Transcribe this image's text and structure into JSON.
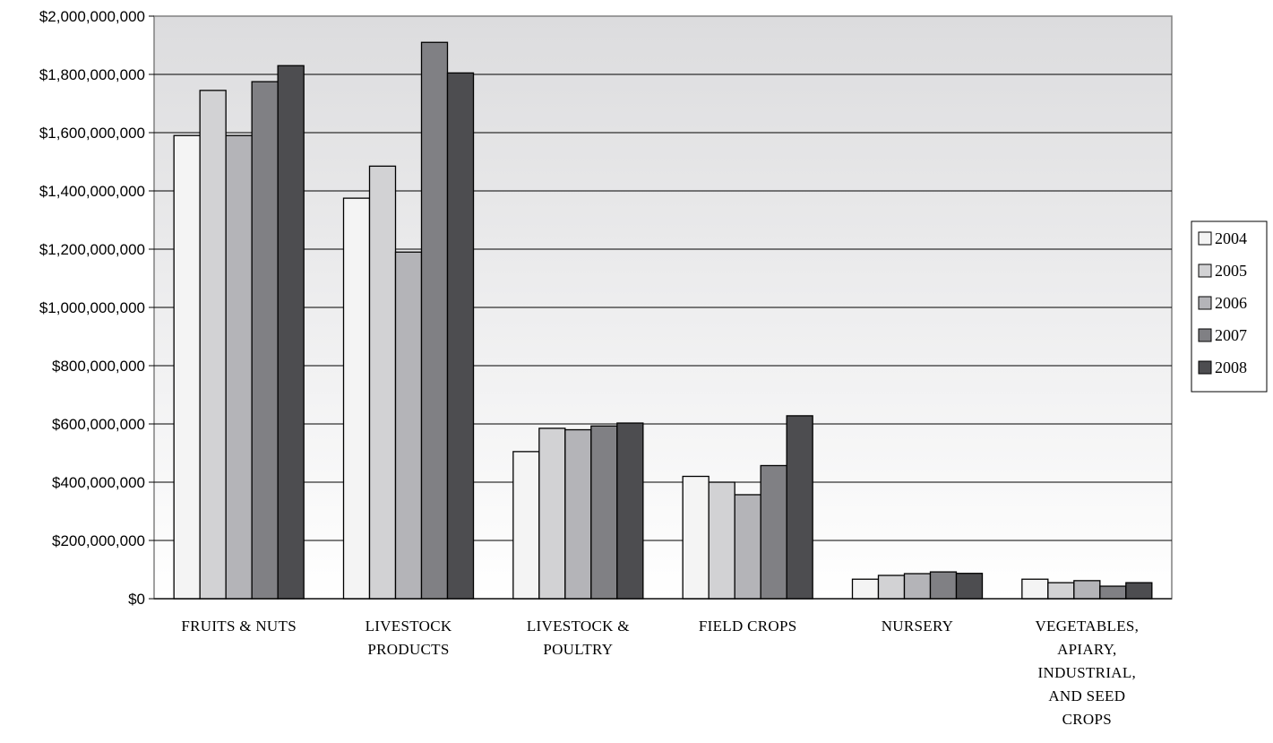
{
  "chart_data": {
    "type": "bar",
    "title": "",
    "xlabel": "",
    "ylabel": "",
    "categories": [
      [
        "FRUITS & NUTS"
      ],
      [
        "LIVESTOCK",
        "PRODUCTS"
      ],
      [
        "LIVESTOCK &",
        "POULTRY"
      ],
      [
        "FIELD CROPS"
      ],
      [
        "NURSERY"
      ],
      [
        "VEGETABLES,",
        "APIARY,",
        "INDUSTRIAL,",
        "AND SEED",
        "CROPS"
      ]
    ],
    "series": [
      {
        "name": "2004",
        "color": "#f4f4f4",
        "values": [
          1590000000,
          1375000000,
          505000000,
          420000000,
          67000000,
          67000000
        ]
      },
      {
        "name": "2005",
        "color": "#d2d2d4",
        "values": [
          1745000000,
          1485000000,
          585000000,
          400000000,
          80000000,
          55000000
        ]
      },
      {
        "name": "2006",
        "color": "#b4b4b8",
        "values": [
          1590000000,
          1190000000,
          580000000,
          357000000,
          86000000,
          62000000
        ]
      },
      {
        "name": "2007",
        "color": "#808084",
        "values": [
          1775000000,
          1910000000,
          593000000,
          457000000,
          92000000,
          43000000
        ]
      },
      {
        "name": "2008",
        "color": "#4d4d50",
        "values": [
          1830000000,
          1805000000,
          603000000,
          628000000,
          87000000,
          55000000
        ]
      }
    ],
    "ylim": [
      0,
      2000000000
    ],
    "y_ticks": [
      "$0",
      "$200,000,000",
      "$400,000,000",
      "$600,000,000",
      "$800,000,000",
      "$1,000,000,000",
      "$1,200,000,000",
      "$1,400,000,000",
      "$1,600,000,000",
      "$1,800,000,000",
      "$2,000,000,000"
    ],
    "grid": true,
    "legend_position": "right"
  }
}
